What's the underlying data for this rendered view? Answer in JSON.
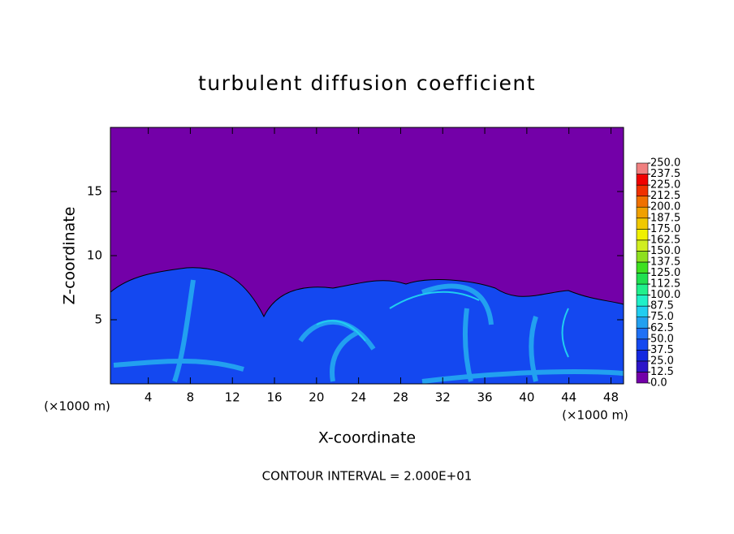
{
  "chart_data": {
    "type": "contour",
    "title": "turbulent diffusion coefficient",
    "x_label": "X-coordinate",
    "y_label": "Z-coordinate",
    "x_unit": "(×1000 m)",
    "y_unit": "(×1000 m)",
    "footer": "CONTOUR INTERVAL = 2.000E+01",
    "xlim": [
      0.4,
      49.2
    ],
    "ylim": [
      0,
      20
    ],
    "xticks": [
      4,
      8,
      12,
      16,
      20,
      24,
      28,
      32,
      36,
      40,
      44,
      48
    ],
    "yticks": [
      5,
      10,
      15
    ],
    "colorbar": {
      "ticks": [
        {
          "value": 0,
          "label": "0.0"
        },
        {
          "value": 12.5,
          "label": "12.5"
        },
        {
          "value": 25,
          "label": "25.0"
        },
        {
          "value": 37.5,
          "label": "37.5"
        },
        {
          "value": 50,
          "label": "50.0"
        },
        {
          "value": 62.5,
          "label": "62.5"
        },
        {
          "value": 75,
          "label": "75.0"
        },
        {
          "value": 87.5,
          "label": "87.5"
        },
        {
          "value": 100,
          "label": "100.0"
        },
        {
          "value": 112.5,
          "label": "112.5"
        },
        {
          "value": 125,
          "label": "125.0"
        },
        {
          "value": 137.5,
          "label": "137.5"
        },
        {
          "value": 150,
          "label": "150.0"
        },
        {
          "value": 162.5,
          "label": "162.5"
        },
        {
          "value": 175,
          "label": "175.0"
        },
        {
          "value": 187.5,
          "label": "187.5"
        },
        {
          "value": 200,
          "label": "200.0"
        },
        {
          "value": 212.5,
          "label": "212.5"
        },
        {
          "value": 225,
          "label": "225.0"
        },
        {
          "value": 237.5,
          "label": "237.5"
        },
        {
          "value": 250,
          "label": "250.0"
        }
      ],
      "colors": [
        "#7300a8",
        "#2c14c8",
        "#1428e0",
        "#1448f0",
        "#1e70f5",
        "#22a0f0",
        "#20cdf0",
        "#20f0c8",
        "#20f08c",
        "#20e050",
        "#3ee020",
        "#8ee020",
        "#d0ee20",
        "#f0f000",
        "#f0c800",
        "#f0a000",
        "#f07000",
        "#f03000",
        "#f00000",
        "#f08080"
      ]
    }
  }
}
